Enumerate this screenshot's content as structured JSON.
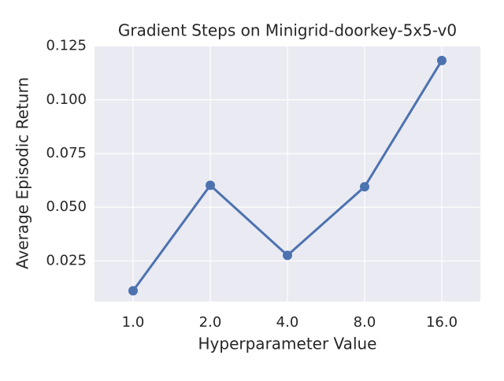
{
  "chart_data": {
    "type": "point",
    "title": "Gradient Steps on Minigrid-doorkey-5x5-v0",
    "x_label": "Hyperparameter Value",
    "y_label": "Average Episodic Return",
    "categories": [
      "1.0",
      "2.0",
      "4.0",
      "8.0",
      "16.0"
    ],
    "values": [
      0.0111,
      0.0602,
      0.0276,
      0.0595,
      0.1183
    ],
    "color": "#4c72b0",
    "ylim": [
      0.0061,
      0.1252
    ],
    "yticks": [
      0.025,
      {
        "value": 0.05,
        "label": "0.050"
      },
      0.075,
      {
        "value": 0.1,
        "label": "0.100"
      },
      0.125
    ],
    "grid": true
  }
}
